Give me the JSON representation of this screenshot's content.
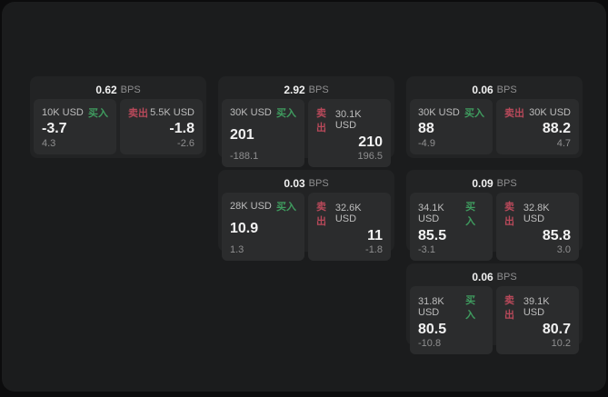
{
  "colors": {
    "page_bg": "#0c0c0d",
    "panel_bg": "#1b1c1d",
    "card_bg": "#222324",
    "tile_bg": "#2b2c2d",
    "text_primary": "#f2f2f2",
    "text_secondary": "#8f8f90",
    "text_label": "#bdbdbd",
    "buy_green": "#3f9c5f",
    "sell_red": "#b8495a"
  },
  "labels": {
    "bps_suffix": "BPS",
    "buy": "买入",
    "sell": "卖出"
  },
  "cards": [
    {
      "row": 1,
      "col": 1,
      "bps": "0.62",
      "buy": {
        "amount": "10K USD",
        "price": "-3.7",
        "delta": "4.3"
      },
      "sell": {
        "amount": "5.5K USD",
        "price": "-1.8",
        "delta": "-2.6"
      }
    },
    {
      "row": 1,
      "col": 2,
      "bps": "2.92",
      "buy": {
        "amount": "30K USD",
        "price": "201",
        "delta": "-188.1"
      },
      "sell": {
        "amount": "30.1K USD",
        "price": "210",
        "delta": "196.5"
      }
    },
    {
      "row": 1,
      "col": 3,
      "bps": "0.06",
      "buy": {
        "amount": "30K USD",
        "price": "88",
        "delta": "-4.9"
      },
      "sell": {
        "amount": "30K USD",
        "price": "88.2",
        "delta": "4.7"
      }
    },
    {
      "row": 2,
      "col": 2,
      "bps": "0.03",
      "buy": {
        "amount": "28K USD",
        "price": "10.9",
        "delta": "1.3"
      },
      "sell": {
        "amount": "32.6K USD",
        "price": "11",
        "delta": "-1.8"
      }
    },
    {
      "row": 2,
      "col": 3,
      "bps": "0.09",
      "buy": {
        "amount": "34.1K USD",
        "price": "85.5",
        "delta": "-3.1"
      },
      "sell": {
        "amount": "32.8K USD",
        "price": "85.8",
        "delta": "3.0"
      }
    },
    {
      "row": 3,
      "col": 3,
      "bps": "0.06",
      "buy": {
        "amount": "31.8K USD",
        "price": "80.5",
        "delta": "-10.8"
      },
      "sell": {
        "amount": "39.1K USD",
        "price": "80.7",
        "delta": "10.2"
      }
    }
  ]
}
